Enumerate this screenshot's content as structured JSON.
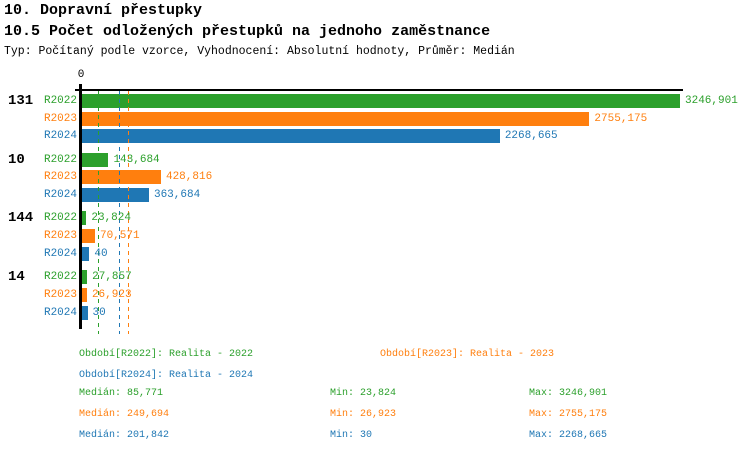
{
  "header": {
    "title": "10. Dopravní přestupky",
    "subtitle": "10.5 Počet odložených přestupků na jednoho zaměstnance",
    "meta": "Typ: Počítaný podle vzorce, Vyhodnocení: Absolutní hodnoty, Průměr: Medián"
  },
  "colors": {
    "R2022": "#2ca02c",
    "R2023": "#ff7f0e",
    "R2024": "#1f77b4",
    "axis": "#000000",
    "background": "#ffffff",
    "text": "#000000"
  },
  "chart_data": {
    "type": "bar",
    "orientation": "horizontal",
    "title": "10.5 Počet odložených přestupků na jednoho zaměstnance",
    "xlabel": "",
    "ylabel": "",
    "xlim": [
      0,
      3246.901
    ],
    "zero_tick_label": "0",
    "grid": false,
    "legend_position": "bottom",
    "categories": [
      "131",
      "10",
      "144",
      "14"
    ],
    "series": [
      {
        "name": "R2022",
        "color": "#2ca02c",
        "values": [
          3246.901,
          143.684,
          23.824,
          27.857
        ],
        "value_labels": [
          "3246,901",
          "143,684",
          "23,824",
          "27,857"
        ],
        "median": 85.771,
        "median_label": "85,771"
      },
      {
        "name": "R2023",
        "color": "#ff7f0e",
        "values": [
          2755.175,
          428.816,
          70.571,
          26.923
        ],
        "value_labels": [
          "2755,175",
          "428,816",
          "70,571",
          "26,923"
        ],
        "median": 249.694,
        "median_label": "249,694"
      },
      {
        "name": "R2024",
        "color": "#1f77b4",
        "values": [
          2268.665,
          363.684,
          40,
          30
        ],
        "value_labels": [
          "2268,665",
          "363,684",
          "40",
          "30"
        ],
        "median": 201.842,
        "median_label": "201,842"
      }
    ]
  },
  "legend": {
    "items": [
      {
        "series": "R2022",
        "label": "Období[R2022]: Realita - 2022"
      },
      {
        "series": "R2023",
        "label": "Období[R2023]: Realita - 2023"
      },
      {
        "series": "R2024",
        "label": "Období[R2024]: Realita - 2024"
      }
    ]
  },
  "stats": {
    "rows": [
      {
        "series": "R2022",
        "median": "Medián: 85,771",
        "min": "Min: 23,824",
        "max": "Max: 3246,901"
      },
      {
        "series": "R2023",
        "median": "Medián: 249,694",
        "min": "Min: 26,923",
        "max": "Max: 2755,175"
      },
      {
        "series": "R2024",
        "median": "Medián: 201,842",
        "min": "Min: 30",
        "max": "Max: 2268,665"
      }
    ]
  }
}
